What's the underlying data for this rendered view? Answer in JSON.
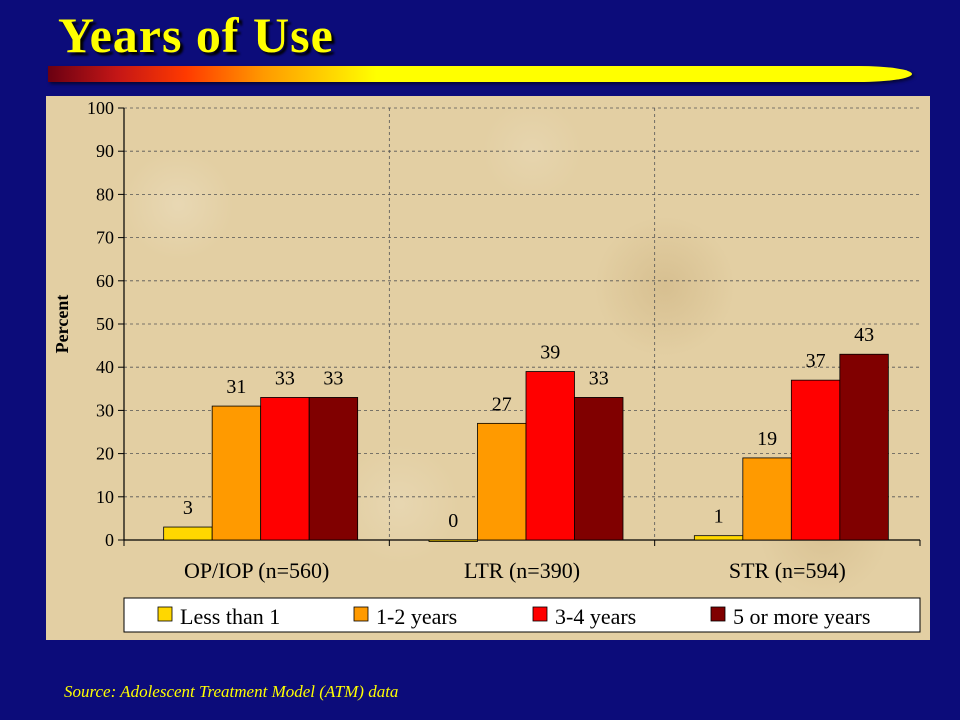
{
  "slide": {
    "title": "Years of Use",
    "source": "Source:  Adolescent Treatment Model (ATM) data"
  },
  "colors": {
    "background": "#0c0c7a",
    "title": "#ffff00",
    "series": [
      "#ffd700",
      "#ff9a00",
      "#ff0000",
      "#800000"
    ]
  },
  "chart_data": {
    "type": "bar",
    "title": "",
    "xlabel": "",
    "ylabel": "Percent",
    "ylim": [
      0,
      100
    ],
    "yticks": [
      0,
      10,
      20,
      30,
      40,
      50,
      60,
      70,
      80,
      90,
      100
    ],
    "grid": true,
    "legend_position": "bottom",
    "categories": [
      "OP/IOP (n=560)",
      "LTR (n=390)",
      "STR (n=594)"
    ],
    "series": [
      {
        "name": "Less than 1",
        "values": [
          3,
          0,
          1
        ],
        "labels": [
          "3",
          "0",
          "1"
        ],
        "color": "#ffd700"
      },
      {
        "name": "1-2 years",
        "values": [
          31,
          27,
          19
        ],
        "labels": [
          "31",
          "27",
          "19"
        ],
        "color": "#ff9a00"
      },
      {
        "name": "3-4 years",
        "values": [
          33,
          39,
          37
        ],
        "labels": [
          "33",
          "39",
          "37"
        ],
        "color": "#ff0000"
      },
      {
        "name": "5 or more years",
        "values": [
          33,
          33,
          43
        ],
        "labels": [
          "33",
          "33",
          "43"
        ],
        "color": "#800000"
      }
    ]
  }
}
